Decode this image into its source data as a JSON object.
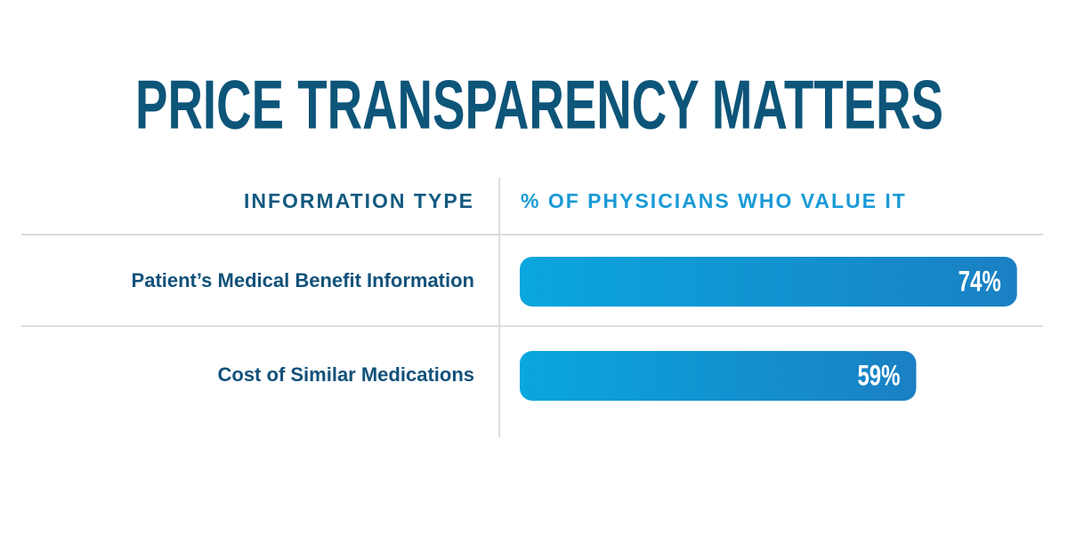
{
  "chart_data": {
    "type": "bar",
    "title": "PRICE TRANSPARENCY MATTERS",
    "columns": [
      "INFORMATION TYPE",
      "% OF PHYSICIANS WHO VALUE IT"
    ],
    "categories": [
      "Patient’s Medical Benefit Information",
      "Cost of Similar Medications"
    ],
    "values": [
      74,
      59
    ],
    "value_labels": [
      "74%",
      "59%"
    ],
    "color": [
      "#0aa6de",
      "#1a80c3"
    ]
  }
}
